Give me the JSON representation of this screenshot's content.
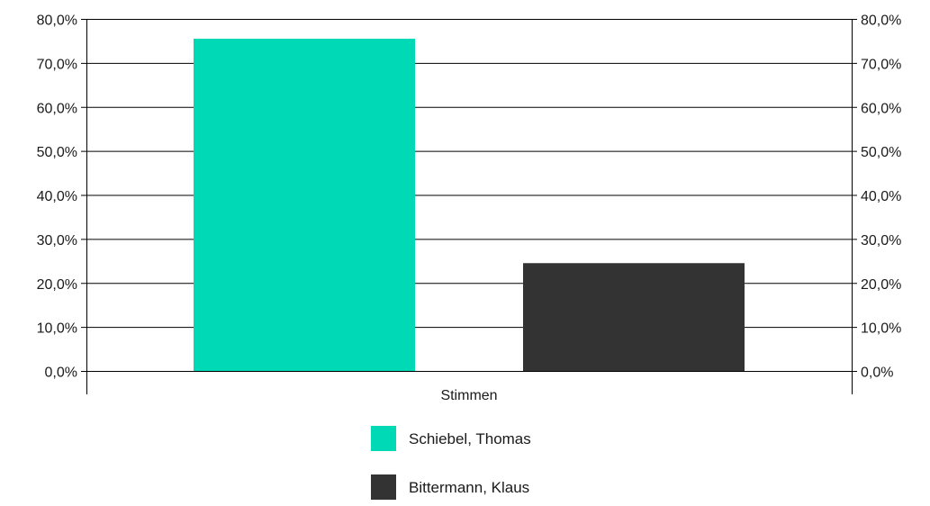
{
  "chart_data": {
    "type": "bar",
    "categories": [
      "Stimmen"
    ],
    "series": [
      {
        "name": "Schiebel, Thomas",
        "values": [
          75.5
        ],
        "color": "#00d9b6"
      },
      {
        "name": "Bittermann, Klaus",
        "values": [
          24.5
        ],
        "color": "#333333"
      }
    ],
    "title": "",
    "xlabel": "",
    "ylabel": "",
    "ylim": [
      0,
      80
    ],
    "yticks": [
      0,
      10,
      20,
      30,
      40,
      50,
      60,
      70,
      80
    ],
    "ytick_labels": [
      "0,0%",
      "10,0%",
      "20,0%",
      "30,0%",
      "40,0%",
      "50,0%",
      "60,0%",
      "70,0%",
      "80,0%"
    ],
    "secondary_axis": true,
    "grid": true,
    "legend_position": "bottom"
  }
}
